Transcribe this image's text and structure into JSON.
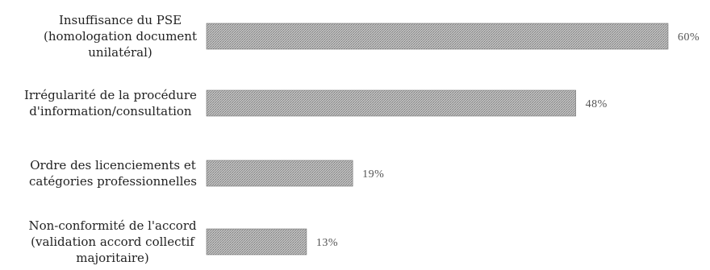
{
  "chart_data": {
    "type": "bar",
    "orientation": "horizontal",
    "categories": [
      [
        "Insuffisance du PSE",
        "(homologation document",
        "unilatéral)"
      ],
      [
        "Irrégularité de la procédure",
        "d'information/consultation"
      ],
      [
        "Ordre des licenciements et",
        "catégories professionnelles"
      ],
      [
        "Non-conformité de l'accord",
        "(validation accord collectif",
        "majoritaire)"
      ]
    ],
    "values": [
      60,
      48,
      19,
      13
    ],
    "value_labels": [
      "60%",
      "48%",
      "19%",
      "13%"
    ],
    "xlim": [
      0,
      60
    ],
    "grid": false,
    "legend": "none",
    "colors": {
      "bar_fill": "#a9a9a9",
      "bar_stroke": "#6f6f6f"
    }
  }
}
